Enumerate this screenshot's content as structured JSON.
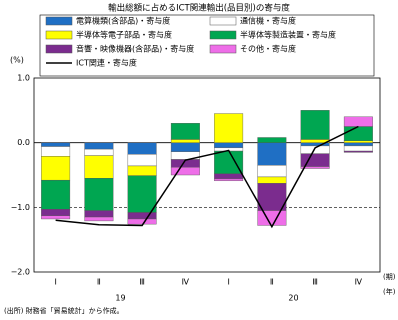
{
  "chart_data": {
    "type": "bar",
    "title": "輸出総額に占めるICT関連輸出(品目別)の寄与度",
    "y_unit": "(%)",
    "x_unit": "(期)",
    "group_unit": "(年)",
    "categories": [
      "Ⅰ",
      "Ⅱ",
      "Ⅲ",
      "Ⅳ",
      "Ⅰ",
      "Ⅱ",
      "Ⅲ",
      "Ⅳ"
    ],
    "groups": [
      "19",
      "20"
    ],
    "series": [
      {
        "name": "電算機類(含部品)・寄与度",
        "color": "#1f6fc4",
        "values": [
          -0.06,
          -0.1,
          -0.18,
          -0.14,
          -0.08,
          -0.35,
          -0.05,
          -0.05
        ]
      },
      {
        "name": "通信機・寄与度",
        "color": "#ffffff",
        "values": [
          -0.15,
          -0.1,
          -0.18,
          -0.12,
          -0.05,
          -0.18,
          -0.12,
          -0.08
        ]
      },
      {
        "name": "半導体等電子部品・寄与度",
        "color": "#ffff00",
        "values": [
          -0.37,
          -0.35,
          -0.15,
          0.05,
          0.45,
          -0.1,
          0.05,
          0.03
        ]
      },
      {
        "name": "半導体等製造装置・寄与度",
        "color": "#00a651",
        "values": [
          -0.45,
          -0.5,
          -0.57,
          0.25,
          -0.35,
          0.08,
          0.45,
          0.22
        ]
      },
      {
        "name": "音響・映像機器(含部品)・寄与度",
        "color": "#7b2c8e",
        "values": [
          -0.1,
          -0.1,
          -0.1,
          -0.12,
          -0.08,
          -0.42,
          -0.2,
          -0.02
        ]
      },
      {
        "name": "その他・寄与度",
        "color": "#ee6ee8",
        "values": [
          -0.05,
          -0.06,
          -0.08,
          -0.12,
          -0.03,
          -0.23,
          -0.03,
          0.15
        ]
      },
      {
        "name": "ICT関連・寄与度",
        "color": "#000000",
        "type": "line",
        "values": [
          -1.2,
          -1.27,
          -1.28,
          -0.27,
          -0.12,
          -1.3,
          -0.08,
          0.25
        ]
      }
    ],
    "ylim": [
      -2.0,
      1.0
    ],
    "yticks": [
      {
        "value": -2.0,
        "label": "−2.0"
      },
      {
        "value": -1.0,
        "label": "−1.0"
      },
      {
        "value": 0.0,
        "label": "0.0"
      },
      {
        "value": 1.0,
        "label": "1.0"
      }
    ],
    "grid": true,
    "source": "(出所) 財務省「貿易統計」から作成。"
  }
}
